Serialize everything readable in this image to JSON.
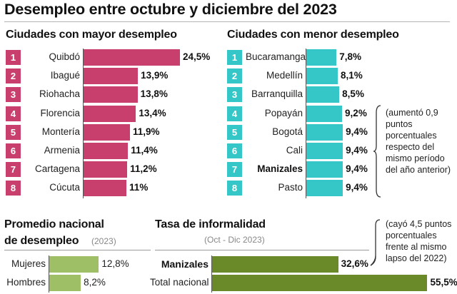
{
  "title": "Desempleo entre octubre y diciembre del 2023",
  "chart_data": [
    {
      "type": "bar",
      "title": "Ciudades con mayor desempleo",
      "unit": "%",
      "ranks": [
        "1",
        "2",
        "3",
        "4",
        "5",
        "6",
        "7",
        "8"
      ],
      "categories": [
        "Quibdó",
        "Ibagué",
        "Riohacha",
        "Florencia",
        "Montería",
        "Armenia",
        "Cartagena",
        "Cúcuta"
      ],
      "values": [
        24.5,
        13.9,
        13.8,
        13.4,
        11.9,
        11.4,
        11.2,
        11
      ],
      "labels": [
        "24,5%",
        "13,9%",
        "13,8%",
        "13,4%",
        "11,9%",
        "11,4%",
        "11,2%",
        "11%"
      ],
      "color": "#c83f6e"
    },
    {
      "type": "bar",
      "title": "Ciudades con menor desempleo",
      "unit": "%",
      "ranks": [
        "1",
        "2",
        "3",
        "4",
        "5",
        "6",
        "7",
        "8"
      ],
      "categories": [
        "Bucaramanga",
        "Medellín",
        "Barranquilla",
        "Popayán",
        "Bogotá",
        "Cali",
        "Manizales",
        "Pasto"
      ],
      "values": [
        7.8,
        8.1,
        8.5,
        9.2,
        9.4,
        9.4,
        9.4,
        9.4
      ],
      "labels": [
        "7,8%",
        "8,1%",
        "8,5%",
        "9,2%",
        "9,4%",
        "9,4%",
        "9,4%",
        "9,4%"
      ],
      "highlight": "Manizales",
      "annotation": [
        "(aumentó 0,9",
        "puntos",
        "porcentuales",
        "respecto del",
        "mismo período",
        "del año anterior)"
      ],
      "color": "#35c7c7"
    },
    {
      "type": "bar",
      "title": [
        "Promedio nacional",
        "de desempleo"
      ],
      "subtitle": "(2023)",
      "categories": [
        "Mujeres",
        "Hombres"
      ],
      "values": [
        12.8,
        8.2
      ],
      "labels": [
        "12,8%",
        "8,2%"
      ],
      "color": "#9ebf66"
    },
    {
      "type": "bar",
      "title": "Tasa de informalidad",
      "subtitle": "(Oct - Dic 2023)",
      "categories": [
        "Manizales",
        "Total nacional"
      ],
      "values": [
        32.6,
        55.5
      ],
      "labels": [
        "32,6%",
        "55,5%"
      ],
      "highlight": "Manizales",
      "annotation": [
        "(cayó 4,5 puntos",
        "porcentuales",
        "frente al mismo",
        "lapso del 2022)"
      ],
      "color": "#6a8a2a"
    }
  ]
}
